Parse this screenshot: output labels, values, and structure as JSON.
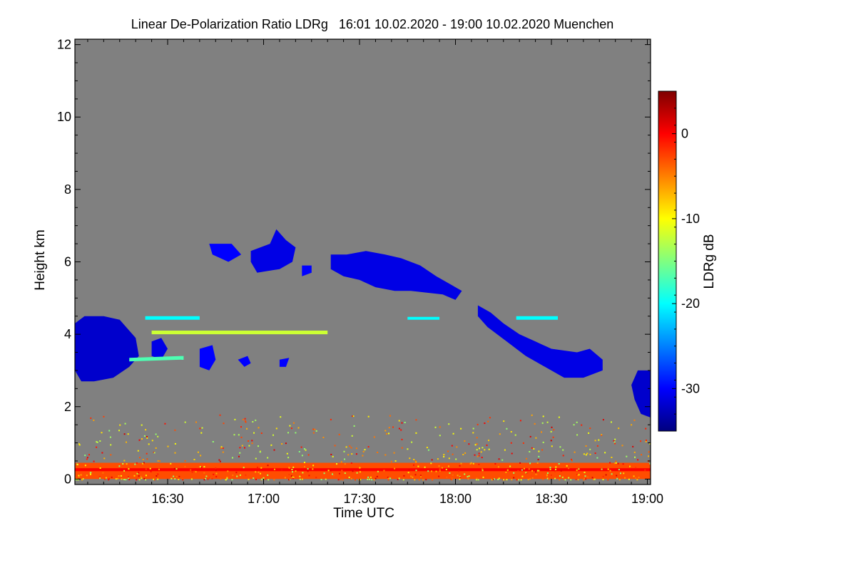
{
  "chart_data": {
    "type": "heatmap",
    "title": "Linear De-Polarization Ratio LDRg   16:01 10.02.2020 - 19:00 10.02.2020 Muenchen",
    "xlabel": "Time UTC",
    "ylabel": "Height km",
    "colorbar_label": "LDRg dB",
    "x_range_minutes": [
      961,
      1141
    ],
    "x_ticks": [
      {
        "minute": 990,
        "label": "16:30"
      },
      {
        "minute": 1020,
        "label": "17:00"
      },
      {
        "minute": 1050,
        "label": "17:30"
      },
      {
        "minute": 1080,
        "label": "18:00"
      },
      {
        "minute": 1110,
        "label": "18:30"
      },
      {
        "minute": 1140,
        "label": "19:00"
      }
    ],
    "y_range_km": [
      -0.15,
      12.15
    ],
    "y_ticks": [
      {
        "value": 0,
        "label": "0"
      },
      {
        "value": 2,
        "label": "2"
      },
      {
        "value": 4,
        "label": "4"
      },
      {
        "value": 6,
        "label": "6"
      },
      {
        "value": 8,
        "label": "8"
      },
      {
        "value": 10,
        "label": "10"
      },
      {
        "value": 12,
        "label": "12"
      }
    ],
    "colorbar_range_db": [
      -35,
      5
    ],
    "colorbar_ticks": [
      {
        "value": 0,
        "label": "0"
      },
      {
        "value": -10,
        "label": "-10"
      },
      {
        "value": -20,
        "label": "-20"
      },
      {
        "value": -30,
        "label": "-30"
      }
    ],
    "colormap": [
      "#00007f",
      "#0000ff",
      "#0080ff",
      "#00ffff",
      "#80ff80",
      "#ffff00",
      "#ff8000",
      "#ff0000",
      "#7f0000"
    ],
    "no_data_color": "#808080",
    "features": [
      {
        "name": "low-cloud-0",
        "ldr": -32,
        "points": [
          [
            961,
            4.3
          ],
          [
            964,
            4.5
          ],
          [
            970,
            4.5
          ],
          [
            975,
            4.4
          ],
          [
            980,
            3.9
          ],
          [
            981,
            3.4
          ],
          [
            978,
            3.1
          ],
          [
            973,
            2.8
          ],
          [
            967,
            2.7
          ],
          [
            963,
            2.7
          ],
          [
            961,
            3.0
          ]
        ]
      },
      {
        "name": "low-cloud-1",
        "ldr": -31,
        "points": [
          [
            985,
            3.4
          ],
          [
            988,
            3.3
          ],
          [
            990,
            3.6
          ],
          [
            988,
            3.9
          ],
          [
            985,
            3.8
          ]
        ]
      },
      {
        "name": "low-cloud-2",
        "ldr": -30,
        "points": [
          [
            1000,
            3.6
          ],
          [
            1004,
            3.7
          ],
          [
            1005,
            3.3
          ],
          [
            1003,
            3.0
          ],
          [
            1000,
            3.1
          ]
        ]
      },
      {
        "name": "low-cloud-3",
        "ldr": -30,
        "points": [
          [
            1012,
            3.3
          ],
          [
            1015,
            3.4
          ],
          [
            1016,
            3.2
          ],
          [
            1014,
            3.1
          ]
        ]
      },
      {
        "name": "low-cloud-4",
        "ldr": -30,
        "points": [
          [
            1025,
            3.3
          ],
          [
            1028,
            3.35
          ],
          [
            1027,
            3.1
          ],
          [
            1025,
            3.1
          ]
        ]
      },
      {
        "name": "cirrus-0",
        "ldr": -30,
        "points": [
          [
            1003,
            6.5
          ],
          [
            1010,
            6.5
          ],
          [
            1013,
            6.2
          ],
          [
            1009,
            6.0
          ],
          [
            1004,
            6.2
          ]
        ]
      },
      {
        "name": "cirrus-1",
        "ldr": -31,
        "points": [
          [
            1016,
            6.3
          ],
          [
            1022,
            6.5
          ],
          [
            1024,
            6.9
          ],
          [
            1027,
            6.6
          ],
          [
            1030,
            6.4
          ],
          [
            1029,
            6.0
          ],
          [
            1025,
            5.8
          ],
          [
            1018,
            5.7
          ],
          [
            1016,
            6.0
          ]
        ]
      },
      {
        "name": "cirrus-2",
        "ldr": -30,
        "points": [
          [
            1032,
            5.9
          ],
          [
            1035,
            5.9
          ],
          [
            1035,
            5.7
          ],
          [
            1032,
            5.6
          ]
        ]
      },
      {
        "name": "cirrus-3",
        "ldr": -31,
        "points": [
          [
            1041,
            6.2
          ],
          [
            1046,
            6.2
          ],
          [
            1052,
            6.3
          ],
          [
            1058,
            6.2
          ],
          [
            1063,
            6.1
          ],
          [
            1069,
            5.9
          ],
          [
            1074,
            5.6
          ],
          [
            1078,
            5.4
          ],
          [
            1082,
            5.2
          ],
          [
            1080,
            4.95
          ],
          [
            1076,
            5.1
          ],
          [
            1071,
            5.15
          ],
          [
            1066,
            5.2
          ],
          [
            1061,
            5.2
          ],
          [
            1055,
            5.3
          ],
          [
            1050,
            5.5
          ],
          [
            1045,
            5.6
          ],
          [
            1041,
            5.8
          ]
        ]
      },
      {
        "name": "slope-cloud",
        "ldr": -31,
        "points": [
          [
            1087,
            4.8
          ],
          [
            1091,
            4.6
          ],
          [
            1095,
            4.3
          ],
          [
            1100,
            4.0
          ],
          [
            1105,
            3.8
          ],
          [
            1110,
            3.6
          ],
          [
            1118,
            3.5
          ],
          [
            1122,
            3.6
          ],
          [
            1126,
            3.3
          ],
          [
            1126,
            3.0
          ],
          [
            1120,
            2.8
          ],
          [
            1114,
            2.8
          ],
          [
            1108,
            3.1
          ],
          [
            1102,
            3.4
          ],
          [
            1096,
            3.8
          ],
          [
            1090,
            4.2
          ],
          [
            1087,
            4.5
          ]
        ]
      },
      {
        "name": "right-edge-cloud",
        "ldr": -32,
        "points": [
          [
            1137,
            3.0
          ],
          [
            1141,
            3.0
          ],
          [
            1141,
            1.7
          ],
          [
            1138,
            1.8
          ],
          [
            1136,
            2.2
          ],
          [
            1135,
            2.6
          ]
        ]
      },
      {
        "name": "layer-3.3",
        "ldr": -17,
        "points": [
          [
            978,
            3.25
          ],
          [
            995,
            3.3
          ],
          [
            995,
            3.4
          ],
          [
            978,
            3.35
          ]
        ]
      },
      {
        "name": "layer-4.4",
        "ldr": -20,
        "points": [
          [
            983,
            4.4
          ],
          [
            1000,
            4.4
          ],
          [
            1000,
            4.5
          ],
          [
            983,
            4.5
          ]
        ]
      },
      {
        "name": "layer-4.05",
        "ldr": -12,
        "points": [
          [
            985,
            4.0
          ],
          [
            1040,
            4.0
          ],
          [
            1040,
            4.1
          ],
          [
            985,
            4.1
          ]
        ]
      },
      {
        "name": "layer-4.45",
        "ldr": -20,
        "points": [
          [
            1065,
            4.4
          ],
          [
            1075,
            4.4
          ],
          [
            1075,
            4.48
          ],
          [
            1065,
            4.48
          ]
        ]
      },
      {
        "name": "layer-4.4b",
        "ldr": -20,
        "points": [
          [
            1099,
            4.4
          ],
          [
            1112,
            4.4
          ],
          [
            1112,
            4.5
          ],
          [
            1099,
            4.5
          ]
        ]
      },
      {
        "name": "surface-band",
        "ldr": -3,
        "points": [
          [
            961,
            0.0
          ],
          [
            1141,
            0.0
          ],
          [
            1141,
            0.45
          ],
          [
            961,
            0.45
          ]
        ]
      },
      {
        "name": "surface-core",
        "ldr": 0,
        "points": [
          [
            961,
            0.22
          ],
          [
            1141,
            0.22
          ],
          [
            1141,
            0.3
          ],
          [
            961,
            0.3
          ]
        ]
      }
    ]
  }
}
